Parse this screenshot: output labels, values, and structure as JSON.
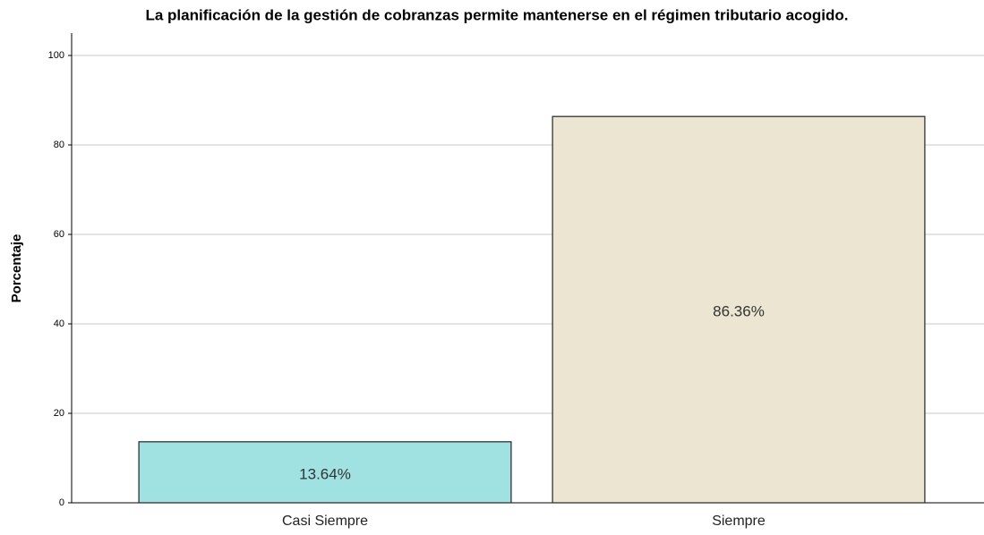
{
  "chart_data": {
    "type": "bar",
    "title": "La planificación de la gestión de cobranzas permite mantenerse en el régimen tributario acogido.",
    "y_label": "Porcentaje",
    "categories": [
      "Casi Siempre",
      "Siempre"
    ],
    "values": [
      13.64,
      86.36
    ],
    "value_labels": [
      "13.64%",
      "86.36%"
    ],
    "colors": [
      "#a0e1e1",
      "#ebe5d1"
    ],
    "ylim": [
      0,
      105
    ],
    "yticks": [
      0,
      20,
      40,
      60,
      80,
      100
    ],
    "grid": true
  }
}
